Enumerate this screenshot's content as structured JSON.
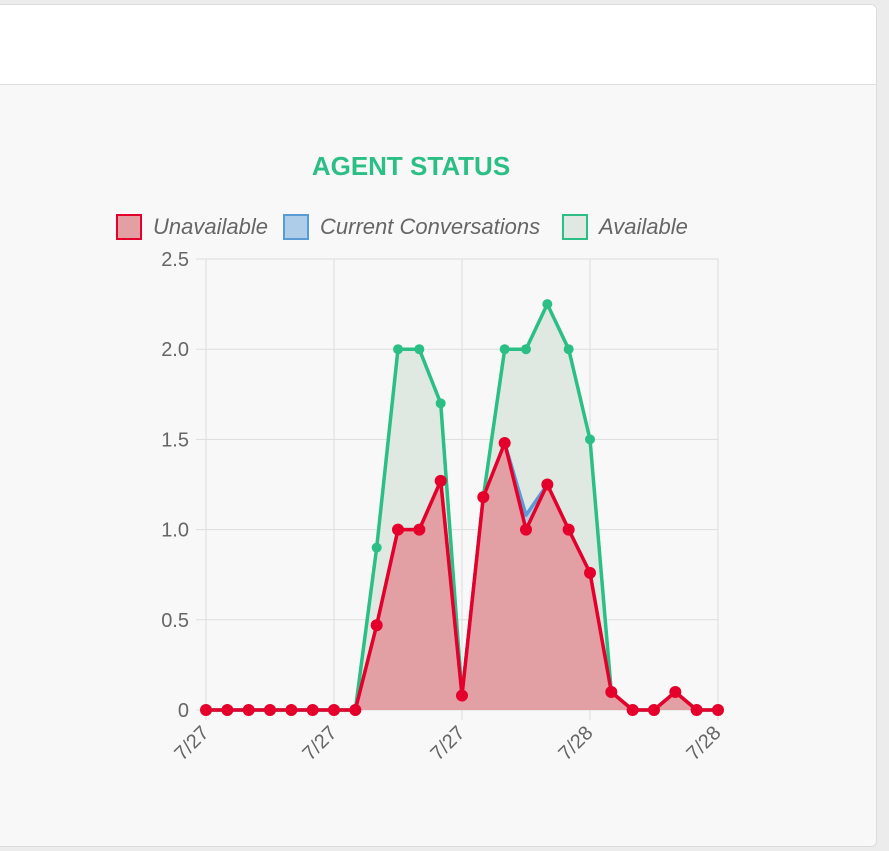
{
  "colors": {
    "unavailable_line": "#e4002b",
    "unavailable_fill": "#e2a0a5",
    "current_line": "#5b9bd5",
    "current_fill": "#aecde9",
    "available_line": "#2bbf85",
    "available_fill": "#dfe9e1",
    "title": "#2bbf85",
    "grid": "#dddddd",
    "card_bg": "#f8f8f8"
  },
  "chart_data": {
    "type": "area",
    "title": "AGENT STATUS",
    "xlabel": "",
    "ylabel": "",
    "ylim": [
      0,
      2.5
    ],
    "y_ticks": [
      "0",
      "0.5",
      "1.0",
      "1.5",
      "2.0",
      "2.5"
    ],
    "x_tick_labels": [
      "7/27",
      "7/27",
      "7/27",
      "7/28",
      "7/28"
    ],
    "legend_position": "top",
    "grid": true,
    "series": [
      {
        "name": "Unavailable",
        "values": [
          0,
          0,
          0,
          0,
          0,
          0,
          0,
          0,
          0.47,
          1.0,
          1.0,
          1.27,
          0.08,
          1.18,
          1.48,
          1.0,
          1.25,
          1.0,
          0.76,
          0.1,
          0,
          0,
          0.1,
          0,
          0
        ]
      },
      {
        "name": "Current Conversations",
        "values": [
          0,
          0,
          0,
          0,
          0,
          0,
          0,
          0,
          0.47,
          1.0,
          1.0,
          1.27,
          0.08,
          1.18,
          1.48,
          1.08,
          1.25,
          1.0,
          0.76,
          0.1,
          0,
          0,
          0.1,
          0,
          0
        ]
      },
      {
        "name": "Available",
        "values": [
          0,
          0,
          0,
          0,
          0,
          0,
          0,
          0,
          0.9,
          2.0,
          2.0,
          1.7,
          0.08,
          1.18,
          2.0,
          2.0,
          2.25,
          2.0,
          1.5,
          0.1,
          0,
          0,
          0.1,
          0,
          0
        ]
      }
    ]
  }
}
